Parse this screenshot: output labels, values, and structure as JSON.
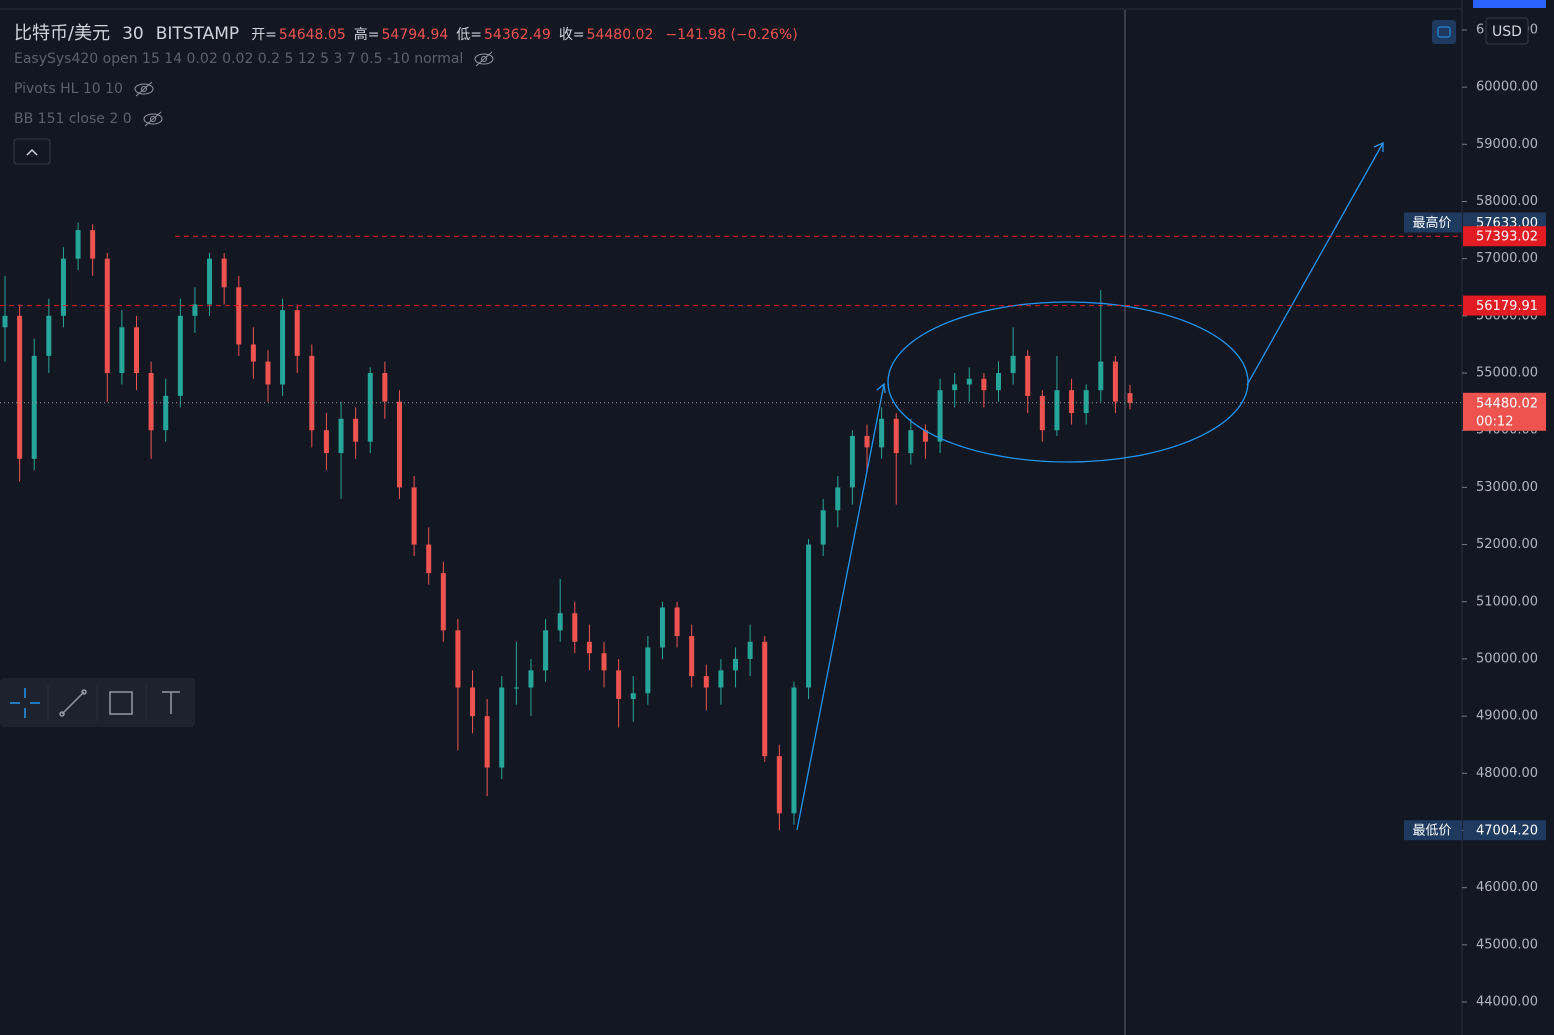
{
  "chart_data": {
    "type": "candlestick",
    "title": "比特币/美元",
    "interval": "30",
    "exchange": "BITSTAMP",
    "ohlc": [
      {
        "key": "开=",
        "value": 54648.05
      },
      {
        "key": "高=",
        "value": 54794.94
      },
      {
        "key": "低=",
        "value": 54362.49
      },
      {
        "key": "收=",
        "value": 54480.02
      }
    ],
    "change": "−141.98 (−0.26%)",
    "indicators": [
      "EasySys420 open 15 14 0.02 0.02 0.2 5 12 5 3 7 0.5 -10 normal",
      "Pivots HL 10 10",
      "BB 151 close 2 0"
    ],
    "currency": "USD",
    "up_color": "#26a69a",
    "down_color": "#ef5350",
    "ylim": [
      43423,
      61524
    ],
    "yticks": [
      {
        "value": 44000,
        "label": "44000.00"
      },
      {
        "value": 45000,
        "label": "45000.00"
      },
      {
        "value": 46000,
        "label": "46000.00"
      },
      {
        "value": 47000,
        "label": "47000.00"
      },
      {
        "value": 48000,
        "label": "48000.00"
      },
      {
        "value": 49000,
        "label": "49000.00"
      },
      {
        "value": 50000,
        "label": "50000.00"
      },
      {
        "value": 51000,
        "label": "51000.00"
      },
      {
        "value": 52000,
        "label": "52000.00"
      },
      {
        "value": 53000,
        "label": "53000.00"
      },
      {
        "value": 54000,
        "label": "54000.00"
      },
      {
        "value": 55000,
        "label": "55000.00"
      },
      {
        "value": 56000,
        "label": "56000.00"
      },
      {
        "value": 57000,
        "label": "57000.00"
      },
      {
        "value": 58000,
        "label": "58000.00"
      },
      {
        "value": 59000,
        "label": "59000.00"
      },
      {
        "value": 60000,
        "label": "60000.00"
      },
      {
        "value": 61000,
        "label": "61000.00"
      }
    ],
    "grid": false,
    "open": [
      55800,
      56000,
      53500,
      55300,
      56000,
      57000,
      57500,
      57000,
      55000,
      55800,
      55000,
      54000,
      54600,
      56000,
      56200,
      57000,
      56500,
      55500,
      55200,
      54800,
      56100,
      55300,
      54000,
      53600,
      54200,
      53800,
      55000,
      54500,
      53000,
      52000,
      51500,
      50500,
      49500,
      49000,
      48100,
      49500,
      49500,
      49800,
      50500,
      50800,
      50300,
      50100,
      49800,
      49300,
      49400,
      50200,
      50900,
      50400,
      49700,
      49500,
      49800,
      50000,
      50300,
      48300,
      47300,
      49500,
      52000,
      52600,
      53000,
      53900,
      53700,
      54200,
      53600,
      54000,
      53800,
      54700,
      54800,
      54900,
      54700,
      55000,
      55300,
      54600,
      54000,
      54700,
      54300,
      54700,
      55200,
      54648.05
    ],
    "high": [
      56700,
      56200,
      55600,
      56300,
      57200,
      57633,
      57600,
      57100,
      56100,
      56000,
      55200,
      54900,
      56300,
      56500,
      57100,
      57100,
      56700,
      55800,
      55400,
      56300,
      56200,
      55500,
      54300,
      54500,
      54400,
      55100,
      55200,
      54700,
      53200,
      52300,
      51700,
      50700,
      49800,
      49300,
      49700,
      50300,
      50000,
      50700,
      51400,
      51000,
      50600,
      50300,
      50000,
      49700,
      50400,
      51000,
      51000,
      50600,
      49900,
      50000,
      50200,
      50600,
      50400,
      48500,
      49600,
      52100,
      52800,
      53200,
      54000,
      54100,
      54400,
      54300,
      54200,
      54100,
      54900,
      55000,
      55100,
      55000,
      55200,
      55800,
      55400,
      54700,
      55300,
      54900,
      54800,
      56450,
      55300,
      54794.94
    ],
    "low": [
      55200,
      53100,
      53300,
      55000,
      55800,
      56800,
      56700,
      54500,
      54800,
      54700,
      53500,
      53800,
      54400,
      55700,
      56000,
      56200,
      55300,
      54900,
      54500,
      54600,
      55000,
      53700,
      53300,
      52800,
      53500,
      53600,
      54200,
      52800,
      51800,
      51300,
      50300,
      48400,
      48700,
      47600,
      47900,
      49200,
      49000,
      49600,
      50300,
      50100,
      49800,
      49500,
      48800,
      48900,
      49200,
      50000,
      50200,
      49500,
      49100,
      49200,
      49500,
      49700,
      48200,
      47004.2,
      47100,
      49300,
      51800,
      52300,
      52700,
      53300,
      53500,
      52700,
      53400,
      53500,
      53600,
      54400,
      54500,
      54400,
      54500,
      54800,
      54300,
      53800,
      53900,
      54100,
      54100,
      54500,
      54300,
      54362.49
    ],
    "close": [
      56000,
      53500,
      55300,
      56000,
      57000,
      57500,
      57000,
      55000,
      55800,
      55000,
      54000,
      54600,
      56000,
      56200,
      57000,
      56500,
      55500,
      55200,
      54800,
      56100,
      55300,
      54000,
      53600,
      54200,
      53800,
      55000,
      54500,
      53000,
      52000,
      51500,
      50500,
      49500,
      49000,
      48100,
      49500,
      49500,
      49800,
      50500,
      50800,
      50300,
      50100,
      49800,
      49300,
      49400,
      50200,
      50900,
      50400,
      49700,
      49500,
      49800,
      50000,
      50300,
      48300,
      47300,
      49500,
      52000,
      52600,
      53000,
      53900,
      53700,
      54200,
      53600,
      54000,
      53800,
      54700,
      54800,
      54900,
      54700,
      55000,
      55300,
      54600,
      54000,
      54700,
      54300,
      54700,
      55200,
      54500,
      54480.02
    ],
    "price_labels": [
      {
        "name": "最高价",
        "value": 57633,
        "label": "57633.00",
        "color": "#1e3a5f"
      },
      {
        "value": 57393.02,
        "color": "#e31b23",
        "line": "dashed"
      },
      {
        "value": 56179.91,
        "color": "#e31b23",
        "line": "dashed"
      },
      {
        "value": 54480.02,
        "color": "#ef5350",
        "line": "dotted",
        "timer": "00:12"
      },
      {
        "name": "最低价",
        "value": 47004.2,
        "label": "47004.20",
        "color": "#1e3a5f"
      }
    ]
  }
}
